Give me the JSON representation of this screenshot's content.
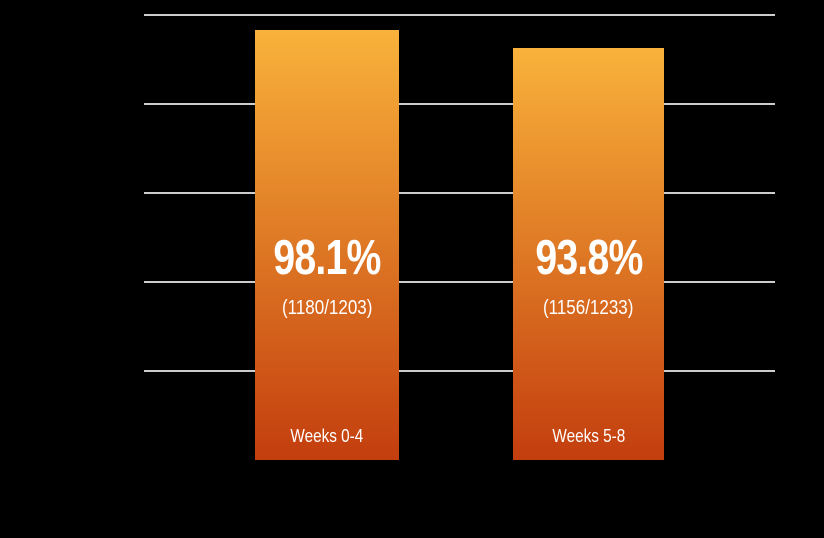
{
  "chart_data": {
    "type": "bar",
    "title": "",
    "xlabel": "",
    "ylabel": "",
    "categories": [
      "Weeks 0-4",
      "Weeks 5-8"
    ],
    "values": [
      98.1,
      93.8
    ],
    "value_labels": [
      "98.1%",
      "93.8%"
    ],
    "fractions": [
      {
        "label": "(1180/1203)",
        "numerator": 1180,
        "denominator": 1203
      },
      {
        "label": "(1156/1233)",
        "numerator": 1156,
        "denominator": 1233
      }
    ],
    "ylim": [
      0,
      100
    ],
    "gridline_count": 5,
    "grid": true,
    "legend": false,
    "axis_tick_labels_visible": false,
    "bar_labels_position": "inside-bottom",
    "colors": {
      "background": "#000000",
      "bar_gradient_top": "#F9B23B",
      "bar_gradient_bottom": "#C33E0E",
      "gridline": "#CCCCCC",
      "text": "#FFFFFF"
    }
  }
}
